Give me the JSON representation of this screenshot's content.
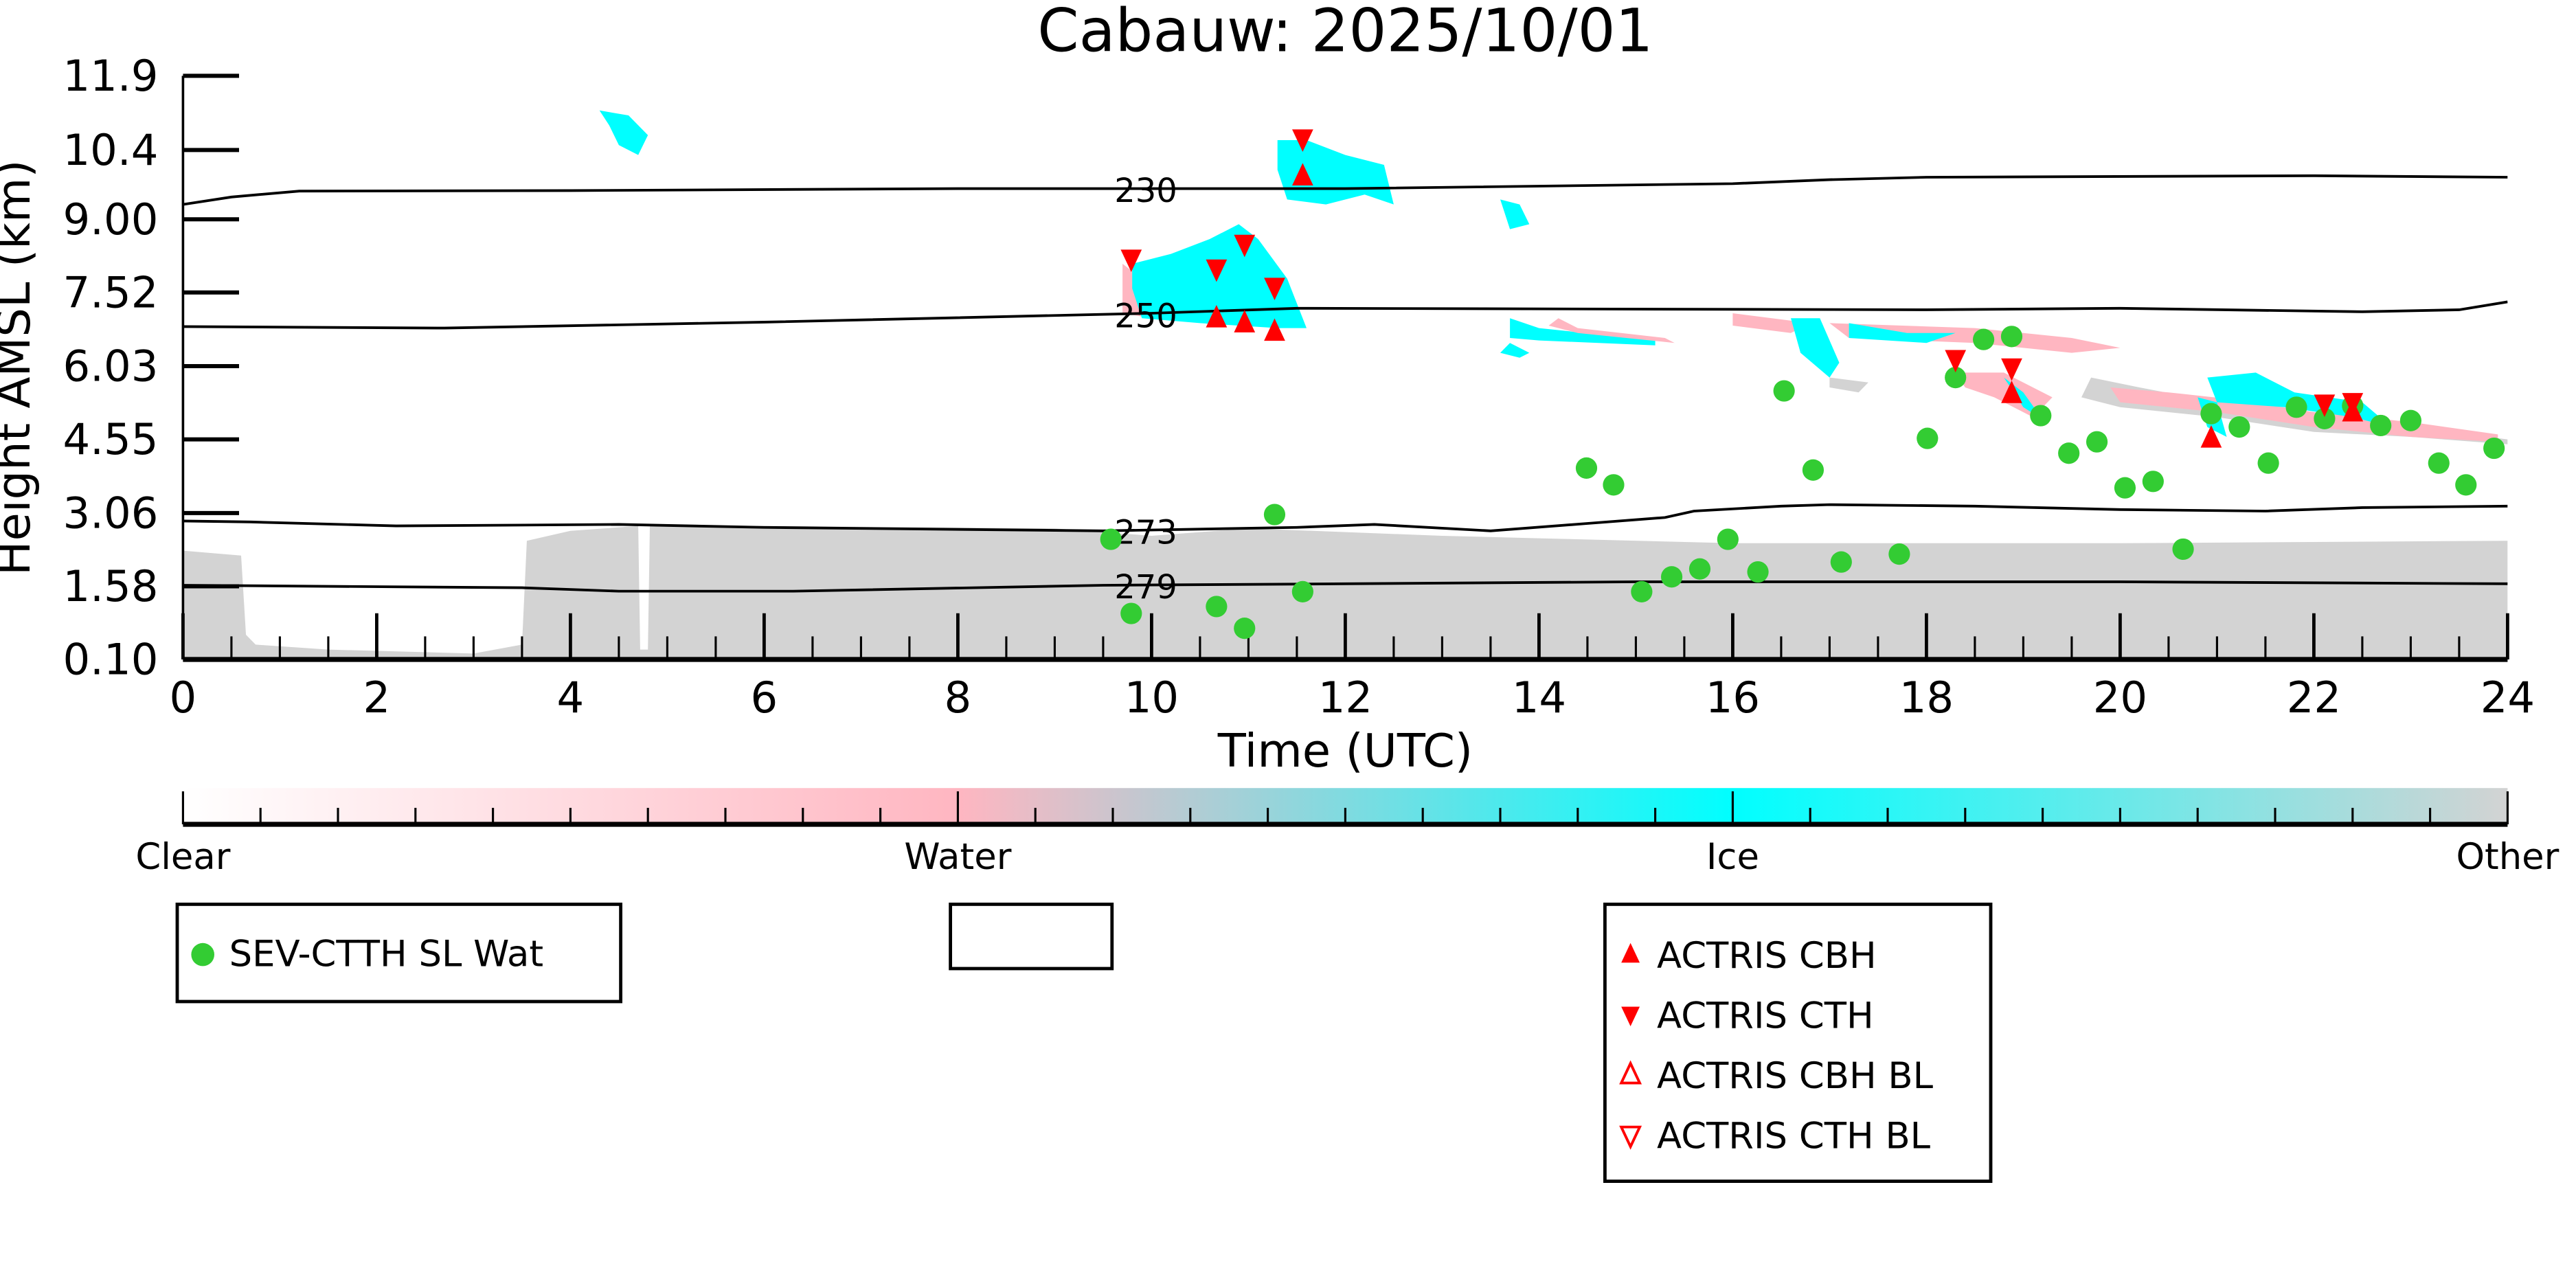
{
  "chart_data": {
    "type": "scatter",
    "title": "Cabauw: 2025/10/01",
    "xlabel": "Time (UTC)",
    "ylabel": "Height AMSL (km)",
    "xlim": [
      0,
      24
    ],
    "ylim": [
      0.1,
      11.9
    ],
    "xticks": [
      "0",
      "2",
      "4",
      "6",
      "8",
      "10",
      "12",
      "14",
      "16",
      "18",
      "20",
      "22",
      "24"
    ],
    "yticks": [
      "0.10",
      "1.58",
      "3.06",
      "4.55",
      "6.03",
      "7.52",
      "9.00",
      "10.4",
      "11.9"
    ],
    "colorbar": {
      "labels": [
        "Clear",
        "Water",
        "Ice",
        "Other"
      ],
      "colors": [
        "#ffffff",
        "#ffb6c1",
        "#00ffff",
        "#d3d3d3"
      ]
    },
    "temperature_contours": [
      {
        "label": "230",
        "points": [
          [
            0,
            9.3
          ],
          [
            0.5,
            9.45
          ],
          [
            1.2,
            9.57
          ],
          [
            4,
            9.58
          ],
          [
            8,
            9.62
          ],
          [
            12,
            9.62
          ],
          [
            16,
            9.72
          ],
          [
            17,
            9.8
          ],
          [
            18,
            9.85
          ],
          [
            22,
            9.88
          ],
          [
            24,
            9.85
          ]
        ]
      },
      {
        "label": "250",
        "points": [
          [
            0,
            6.83
          ],
          [
            2.7,
            6.8
          ],
          [
            6,
            6.92
          ],
          [
            10,
            7.1
          ],
          [
            11.5,
            7.2
          ],
          [
            18,
            7.17
          ],
          [
            20,
            7.2
          ],
          [
            22.5,
            7.13
          ],
          [
            23.5,
            7.17
          ],
          [
            24,
            7.33
          ]
        ]
      },
      {
        "label": "273",
        "points": [
          [
            0,
            2.9
          ],
          [
            0.7,
            2.88
          ],
          [
            2.2,
            2.8
          ],
          [
            4.5,
            2.83
          ],
          [
            6,
            2.77
          ],
          [
            9.5,
            2.7
          ],
          [
            11.5,
            2.77
          ],
          [
            12.3,
            2.83
          ],
          [
            13.5,
            2.7
          ],
          [
            14.5,
            2.85
          ],
          [
            15.3,
            2.97
          ],
          [
            15.6,
            3.1
          ],
          [
            16.5,
            3.2
          ],
          [
            17,
            3.23
          ],
          [
            18.5,
            3.2
          ],
          [
            20,
            3.13
          ],
          [
            21.5,
            3.1
          ],
          [
            22.5,
            3.17
          ],
          [
            24,
            3.2
          ]
        ]
      },
      {
        "label": "279",
        "points": [
          [
            0,
            1.6
          ],
          [
            3.5,
            1.55
          ],
          [
            4.5,
            1.48
          ],
          [
            6.3,
            1.48
          ],
          [
            9.5,
            1.6
          ],
          [
            12,
            1.63
          ],
          [
            15,
            1.67
          ],
          [
            20,
            1.67
          ],
          [
            24,
            1.63
          ]
        ]
      }
    ],
    "cloud_classification_regions": [
      {
        "class": "Other",
        "points": [
          [
            0,
            2.3
          ],
          [
            0.6,
            2.2
          ],
          [
            0.65,
            0.6
          ],
          [
            0.75,
            0.4
          ],
          [
            1.5,
            0.3
          ],
          [
            3,
            0.22
          ],
          [
            3.5,
            0.4
          ],
          [
            3.55,
            2.5
          ],
          [
            4,
            2.7
          ],
          [
            4.7,
            2.8
          ],
          [
            4.72,
            0.3
          ],
          [
            4.8,
            0.3
          ],
          [
            4.82,
            2.8
          ],
          [
            6,
            2.8
          ],
          [
            9,
            2.75
          ],
          [
            10,
            2.6
          ],
          [
            11,
            2.75
          ],
          [
            13,
            2.6
          ],
          [
            14,
            2.55
          ],
          [
            16,
            2.45
          ],
          [
            20,
            2.45
          ],
          [
            24,
            2.5
          ],
          [
            24,
            0.1
          ],
          [
            0,
            0.1
          ]
        ]
      },
      {
        "class": "Ice",
        "points": [
          [
            4.3,
            11.2
          ],
          [
            4.6,
            11.1
          ],
          [
            4.8,
            10.7
          ],
          [
            4.7,
            10.3
          ],
          [
            4.5,
            10.5
          ],
          [
            4.4,
            10.9
          ]
        ]
      },
      {
        "class": "Water",
        "points": [
          [
            9.7,
            8.1
          ],
          [
            9.9,
            7.8
          ],
          [
            10.1,
            7.6
          ],
          [
            10,
            7.0
          ],
          [
            9.7,
            7.1
          ]
        ]
      },
      {
        "class": "Ice",
        "points": [
          [
            9.8,
            8.1
          ],
          [
            10.2,
            8.3
          ],
          [
            10.6,
            8.6
          ],
          [
            10.9,
            8.9
          ],
          [
            11.1,
            8.6
          ],
          [
            11.4,
            7.8
          ],
          [
            11.6,
            6.8
          ],
          [
            11.3,
            6.8
          ],
          [
            10.5,
            6.9
          ],
          [
            9.9,
            7.0
          ],
          [
            9.8,
            7.6
          ]
        ]
      },
      {
        "class": "Ice",
        "points": [
          [
            11.3,
            10.6
          ],
          [
            11.6,
            10.6
          ],
          [
            12,
            10.3
          ],
          [
            12.4,
            10.1
          ],
          [
            12.5,
            9.3
          ],
          [
            12.2,
            9.5
          ],
          [
            11.8,
            9.3
          ],
          [
            11.4,
            9.4
          ],
          [
            11.3,
            10.0
          ]
        ]
      },
      {
        "class": "Ice",
        "points": [
          [
            13.6,
            9.4
          ],
          [
            13.8,
            9.3
          ],
          [
            13.9,
            8.9
          ],
          [
            13.7,
            8.8
          ]
        ]
      },
      {
        "class": "Ice",
        "points": [
          [
            13.7,
            7.0
          ],
          [
            14.0,
            6.8
          ],
          [
            15.2,
            6.55
          ],
          [
            15.2,
            6.45
          ],
          [
            14,
            6.55
          ],
          [
            13.7,
            6.6
          ]
        ]
      },
      {
        "class": "Ice",
        "points": [
          [
            13.7,
            6.5
          ],
          [
            13.9,
            6.3
          ],
          [
            13.8,
            6.2
          ],
          [
            13.6,
            6.3
          ]
        ]
      },
      {
        "class": "Water",
        "points": [
          [
            14.2,
            7.0
          ],
          [
            14.4,
            6.8
          ],
          [
            15.3,
            6.6
          ],
          [
            15.4,
            6.5
          ],
          [
            14.4,
            6.7
          ],
          [
            14.1,
            6.85
          ]
        ]
      },
      {
        "class": "Water",
        "points": [
          [
            16.0,
            7.1
          ],
          [
            16.8,
            6.9
          ],
          [
            17.0,
            7.1
          ],
          [
            16.6,
            6.7
          ],
          [
            16.0,
            6.85
          ]
        ]
      },
      {
        "class": "Ice",
        "points": [
          [
            16.6,
            7.0
          ],
          [
            16.9,
            7.0
          ],
          [
            17.1,
            6.1
          ],
          [
            17.0,
            5.8
          ],
          [
            16.7,
            6.3
          ]
        ]
      },
      {
        "class": "Other",
        "points": [
          [
            17,
            5.8
          ],
          [
            17.4,
            5.7
          ],
          [
            17.3,
            5.5
          ],
          [
            17.0,
            5.6
          ]
        ]
      },
      {
        "class": "Water",
        "points": [
          [
            17.0,
            6.9
          ],
          [
            18.5,
            6.8
          ],
          [
            19.5,
            6.6
          ],
          [
            20.0,
            6.4
          ],
          [
            19.5,
            6.3
          ],
          [
            18.5,
            6.5
          ],
          [
            17.2,
            6.6
          ]
        ]
      },
      {
        "class": "Ice",
        "points": [
          [
            17.2,
            6.9
          ],
          [
            17.8,
            6.7
          ],
          [
            18.3,
            6.7
          ],
          [
            18.0,
            6.5
          ],
          [
            17.2,
            6.6
          ]
        ]
      },
      {
        "class": "Water",
        "points": [
          [
            18.3,
            5.9
          ],
          [
            18.8,
            5.9
          ],
          [
            19.3,
            5.4
          ],
          [
            19.1,
            5.0
          ],
          [
            18.7,
            5.4
          ],
          [
            18.4,
            5.6
          ]
        ]
      },
      {
        "class": "Ice",
        "points": [
          [
            18.8,
            5.8
          ],
          [
            19.0,
            5.2
          ],
          [
            19.2,
            4.95
          ],
          [
            19.0,
            5.5
          ]
        ]
      },
      {
        "class": "Other",
        "points": [
          [
            19.7,
            5.8
          ],
          [
            20.2,
            5.6
          ],
          [
            21,
            5.3
          ],
          [
            21.5,
            5.2
          ],
          [
            22,
            5.0
          ],
          [
            23,
            4.8
          ],
          [
            24,
            4.55
          ],
          [
            24,
            4.45
          ],
          [
            23,
            4.6
          ],
          [
            22,
            4.7
          ],
          [
            21,
            5.0
          ],
          [
            20,
            5.2
          ],
          [
            19.6,
            5.4
          ]
        ]
      },
      {
        "class": "Water",
        "points": [
          [
            19.9,
            5.6
          ],
          [
            20.5,
            5.5
          ],
          [
            21.2,
            5.35
          ],
          [
            22.0,
            5.1
          ],
          [
            23.0,
            4.9
          ],
          [
            23.9,
            4.65
          ],
          [
            23.9,
            4.5
          ],
          [
            23,
            4.6
          ],
          [
            22,
            4.8
          ],
          [
            21,
            5.1
          ],
          [
            20,
            5.3
          ]
        ]
      },
      {
        "class": "Ice",
        "points": [
          [
            20.9,
            5.8
          ],
          [
            21.4,
            5.9
          ],
          [
            21.8,
            5.5
          ],
          [
            22.5,
            5.3
          ],
          [
            22.8,
            4.8
          ],
          [
            22.4,
            5.0
          ],
          [
            21.7,
            5.2
          ],
          [
            21.0,
            5.3
          ]
        ]
      },
      {
        "class": "Ice",
        "points": [
          [
            20.8,
            5.4
          ],
          [
            21.0,
            5.3
          ],
          [
            21.1,
            4.6
          ],
          [
            20.9,
            4.8
          ]
        ]
      }
    ],
    "series": [
      {
        "name": "SEV-CTTH SL Wat",
        "marker": "circle",
        "color": "#33cc33",
        "points": [
          [
            9.58,
            2.53
          ],
          [
            9.79,
            1.03
          ],
          [
            10.67,
            1.17
          ],
          [
            10.96,
            0.73
          ],
          [
            11.27,
            3.03
          ],
          [
            11.56,
            1.47
          ],
          [
            14.49,
            3.97
          ],
          [
            14.77,
            3.63
          ],
          [
            15.06,
            1.47
          ],
          [
            15.37,
            1.77
          ],
          [
            15.66,
            1.93
          ],
          [
            15.95,
            2.53
          ],
          [
            16.26,
            1.87
          ],
          [
            16.53,
            5.53
          ],
          [
            16.83,
            3.93
          ],
          [
            17.12,
            2.07
          ],
          [
            17.72,
            2.23
          ],
          [
            18.01,
            4.57
          ],
          [
            18.3,
            5.8
          ],
          [
            18.59,
            6.57
          ],
          [
            18.88,
            6.63
          ],
          [
            19.18,
            5.03
          ],
          [
            19.47,
            4.27
          ],
          [
            19.76,
            4.5
          ],
          [
            20.05,
            3.57
          ],
          [
            20.34,
            3.7
          ],
          [
            20.65,
            2.33
          ],
          [
            20.94,
            5.07
          ],
          [
            21.23,
            4.8
          ],
          [
            21.53,
            4.07
          ],
          [
            21.82,
            5.2
          ],
          [
            22.11,
            4.97
          ],
          [
            22.4,
            5.23
          ],
          [
            22.69,
            4.83
          ],
          [
            23.0,
            4.93
          ],
          [
            23.29,
            4.07
          ],
          [
            23.57,
            3.63
          ],
          [
            23.86,
            4.37
          ]
        ]
      },
      {
        "name": "ACTRIS CBH",
        "marker": "triangle-up",
        "color": "#ff0000",
        "points": [
          [
            10.67,
            7.0
          ],
          [
            10.96,
            6.9
          ],
          [
            11.27,
            6.73
          ],
          [
            11.56,
            9.87
          ],
          [
            18.88,
            5.47
          ],
          [
            20.94,
            4.57
          ],
          [
            22.4,
            5.1
          ]
        ]
      },
      {
        "name": "ACTRIS CTH",
        "marker": "triangle-down",
        "color": "#ff0000",
        "points": [
          [
            9.79,
            8.2
          ],
          [
            10.67,
            8.0
          ],
          [
            10.96,
            8.5
          ],
          [
            11.27,
            7.63
          ],
          [
            11.56,
            10.63
          ],
          [
            18.3,
            6.17
          ],
          [
            18.88,
            6.0
          ],
          [
            22.11,
            5.27
          ],
          [
            22.4,
            5.3
          ]
        ]
      },
      {
        "name": "ACTRIS CBH BL",
        "marker": "triangle-up-open",
        "color": "#ff0000",
        "points": []
      },
      {
        "name": "ACTRIS CTH BL",
        "marker": "triangle-down-open",
        "color": "#ff0000",
        "points": []
      }
    ]
  }
}
